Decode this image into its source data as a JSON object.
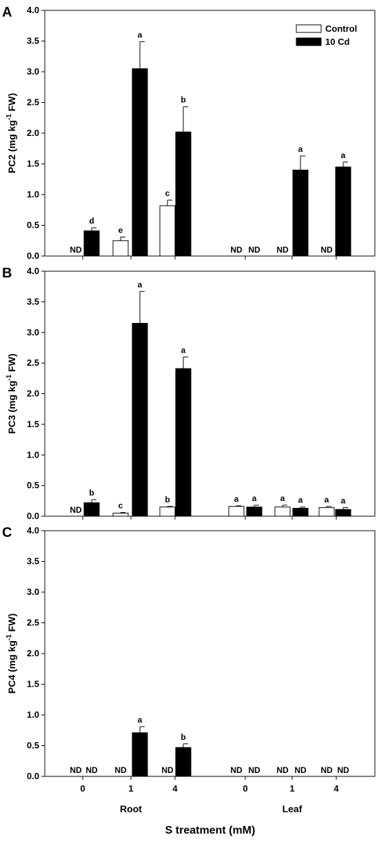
{
  "chart_data": [
    {
      "type": "bar",
      "panel": "A",
      "ylabel_main": "PC2 (mg kg",
      "ylabel_sup": "-1",
      "ylabel_end": " FW)",
      "ylim": [
        0,
        4.0
      ],
      "yticks": [
        "0.0",
        "0.5",
        "1.0",
        "1.5",
        "2.0",
        "2.5",
        "3.0",
        "3.5",
        "4.0"
      ],
      "categories": [
        "Root 0",
        "Root 1",
        "Root 4",
        "Leaf 0",
        "Leaf 1",
        "Leaf 4"
      ],
      "legend": [
        "Control",
        "10 Cd"
      ],
      "series": [
        {
          "name": "Control",
          "values": [
            null,
            0.25,
            0.82,
            null,
            null,
            null
          ],
          "errors": [
            0,
            0.06,
            0.09,
            0,
            0,
            0
          ],
          "labels": [
            "ND",
            "e",
            "c",
            "ND",
            "ND",
            "ND"
          ]
        },
        {
          "name": "10 Cd",
          "values": [
            0.41,
            3.05,
            2.02,
            null,
            1.4,
            1.45
          ],
          "errors": [
            0.05,
            0.44,
            0.41,
            0,
            0.23,
            0.08
          ],
          "labels": [
            "d",
            "a",
            "b",
            "ND",
            "a",
            "a"
          ]
        }
      ]
    },
    {
      "type": "bar",
      "panel": "B",
      "ylabel_main": "PC3 (mg kg",
      "ylabel_sup": "-1",
      "ylabel_end": " FW)",
      "ylim": [
        0,
        4.0
      ],
      "yticks": [
        "0.0",
        "0.5",
        "1.0",
        "1.5",
        "2.0",
        "2.5",
        "3.0",
        "3.5",
        "4.0"
      ],
      "categories": [
        "Root 0",
        "Root 1",
        "Root 4",
        "Leaf 0",
        "Leaf 1",
        "Leaf 4"
      ],
      "series": [
        {
          "name": "Control",
          "values": [
            null,
            0.05,
            0.15,
            0.16,
            0.15,
            0.14
          ],
          "errors": [
            0,
            0.01,
            0.01,
            0.01,
            0.03,
            0.02
          ],
          "labels": [
            "ND",
            "c",
            "b",
            "a",
            "a",
            "a"
          ]
        },
        {
          "name": "10 Cd",
          "values": [
            0.22,
            3.15,
            2.41,
            0.15,
            0.13,
            0.11
          ],
          "errors": [
            0.05,
            0.52,
            0.19,
            0.03,
            0.02,
            0.03
          ],
          "labels": [
            "b",
            "a",
            "a",
            "a",
            "a",
            "a"
          ]
        }
      ]
    },
    {
      "type": "bar",
      "panel": "C",
      "ylabel_main": "PC4 (mg kg",
      "ylabel_sup": "-1",
      "ylabel_end": " FW)",
      "ylim": [
        0,
        4.0
      ],
      "yticks": [
        "0.0",
        "0.5",
        "1.0",
        "1.5",
        "2.0",
        "2.5",
        "3.0",
        "3.5",
        "4.0"
      ],
      "categories": [
        "Root 0",
        "Root 1",
        "Root 4",
        "Leaf 0",
        "Leaf 1",
        "Leaf 4"
      ],
      "xticks": [
        "0",
        "1",
        "4",
        "0",
        "1",
        "4"
      ],
      "series": [
        {
          "name": "Control",
          "values": [
            null,
            null,
            null,
            null,
            null,
            null
          ],
          "errors": [
            0,
            0,
            0,
            0,
            0,
            0
          ],
          "labels": [
            "ND",
            "ND",
            "ND",
            "ND",
            "ND",
            "ND"
          ]
        },
        {
          "name": "10 Cd",
          "values": [
            null,
            0.71,
            0.47,
            null,
            null,
            null
          ],
          "errors": [
            0,
            0.1,
            0.06,
            0,
            0,
            0
          ],
          "labels": [
            "ND",
            "a",
            "b",
            "ND",
            "ND",
            "ND"
          ]
        }
      ]
    }
  ],
  "group_labels": [
    "Root",
    "Leaf"
  ],
  "xlabel": "S treatment (mM)",
  "colors": {
    "control": "#ffffff",
    "cd": "#000000",
    "axis": "#000000"
  }
}
